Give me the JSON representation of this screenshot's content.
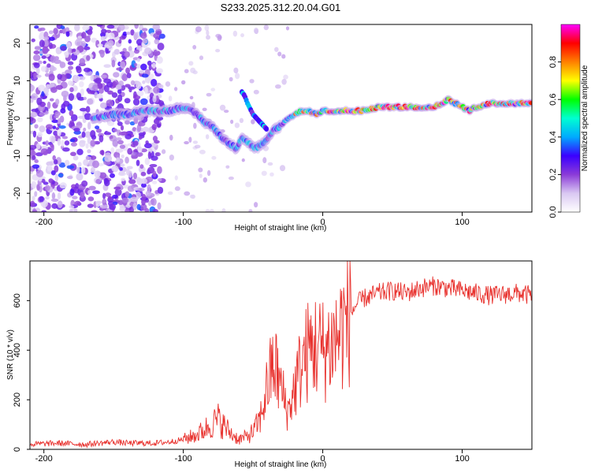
{
  "title": "S233.2025.312.20.04.G01",
  "chart_data": [
    {
      "type": "heatmap",
      "title": "S233.2025.312.20.04.G01",
      "xlabel": "Height of straight line (km)",
      "ylabel": "Frequency (Hz)",
      "xlim": [
        -210,
        150
      ],
      "ylim": [
        -25,
        25
      ],
      "xticks": [
        -200,
        -100,
        0,
        100
      ],
      "xtick_labels": [
        "-200",
        "-100",
        "0",
        "100"
      ],
      "yticks": [
        -20,
        -10,
        0,
        10,
        20
      ],
      "ytick_labels": [
        "-20",
        "-10",
        "0",
        "10",
        "20"
      ],
      "colorbar": {
        "label": "Normalized spectral amplitude",
        "range": [
          0,
          1
        ],
        "ticks": [
          0,
          0.2,
          0.4,
          0.6,
          0.8
        ],
        "tick_labels": [
          "0.0",
          "0.2",
          "0.4",
          "0.6",
          "0.8"
        ],
        "colors": [
          "#ffffff",
          "#d9c8f2",
          "#8b3bd8",
          "#3a00ff",
          "#00aaff",
          "#00ffd2",
          "#00ff00",
          "#ffff00",
          "#ff8000",
          "#ff0000",
          "#ff00ff"
        ]
      },
      "ridge": {
        "x": [
          -165,
          -150,
          -140,
          -130,
          -120,
          -110,
          -100,
          -95,
          -90,
          -85,
          -80,
          -75,
          -70,
          -66,
          -62,
          -58,
          -55,
          -52,
          -48,
          -44,
          -40,
          -35,
          -30,
          -25,
          -20,
          -15,
          -10,
          -5,
          0,
          10,
          20,
          30,
          40,
          50,
          60,
          70,
          80,
          85,
          90,
          95,
          100,
          105,
          110,
          120,
          130,
          140,
          150
        ],
        "y": [
          0,
          1,
          1,
          2,
          2,
          2,
          3,
          2,
          1,
          -1,
          -2,
          -4,
          -6,
          -7,
          -8,
          -5,
          -6,
          -7,
          -8,
          -7,
          -6,
          -3,
          -2,
          0,
          1,
          2,
          2,
          1,
          2,
          2,
          2,
          2,
          3,
          3,
          3,
          3,
          3,
          4,
          5,
          4,
          3,
          2,
          3,
          4,
          4,
          4,
          4
        ]
      },
      "branch": {
        "x": [
          -58,
          -56,
          -54,
          -50,
          -45,
          -40
        ],
        "y": [
          7,
          6,
          4,
          1,
          -1,
          -3
        ]
      }
    },
    {
      "type": "line",
      "xlabel": "Height of straight line (km)",
      "ylabel": "SNR (10 * v/v)",
      "xlim": [
        -210,
        150
      ],
      "ylim": [
        0,
        760
      ],
      "xticks": [
        -200,
        -100,
        0,
        100
      ],
      "xtick_labels": [
        "-200",
        "-100",
        "0",
        "100"
      ],
      "yticks": [
        0,
        200,
        400,
        600
      ],
      "ytick_labels": [
        "0",
        "200",
        "400",
        "600"
      ],
      "color": "#e8312d",
      "series": [
        {
          "name": "SNR",
          "x": [
            -210,
            -190,
            -170,
            -150,
            -140,
            -120,
            -110,
            -100,
            -90,
            -85,
            -80,
            -75,
            -70,
            -65,
            -60,
            -55,
            -50,
            -45,
            -40,
            -35,
            -30,
            -25,
            -20,
            -15,
            -10,
            -5,
            0,
            5,
            10,
            15,
            20,
            25,
            30,
            40,
            50,
            60,
            70,
            80,
            90,
            100,
            110,
            120,
            130,
            140,
            150
          ],
          "y": [
            20,
            25,
            20,
            30,
            25,
            25,
            30,
            40,
            60,
            80,
            100,
            120,
            90,
            60,
            40,
            50,
            70,
            120,
            250,
            350,
            250,
            150,
            250,
            350,
            400,
            420,
            400,
            420,
            450,
            500,
            550,
            590,
            610,
            630,
            640,
            630,
            650,
            660,
            650,
            640,
            630,
            620,
            625,
            630,
            620
          ]
        }
      ]
    }
  ]
}
